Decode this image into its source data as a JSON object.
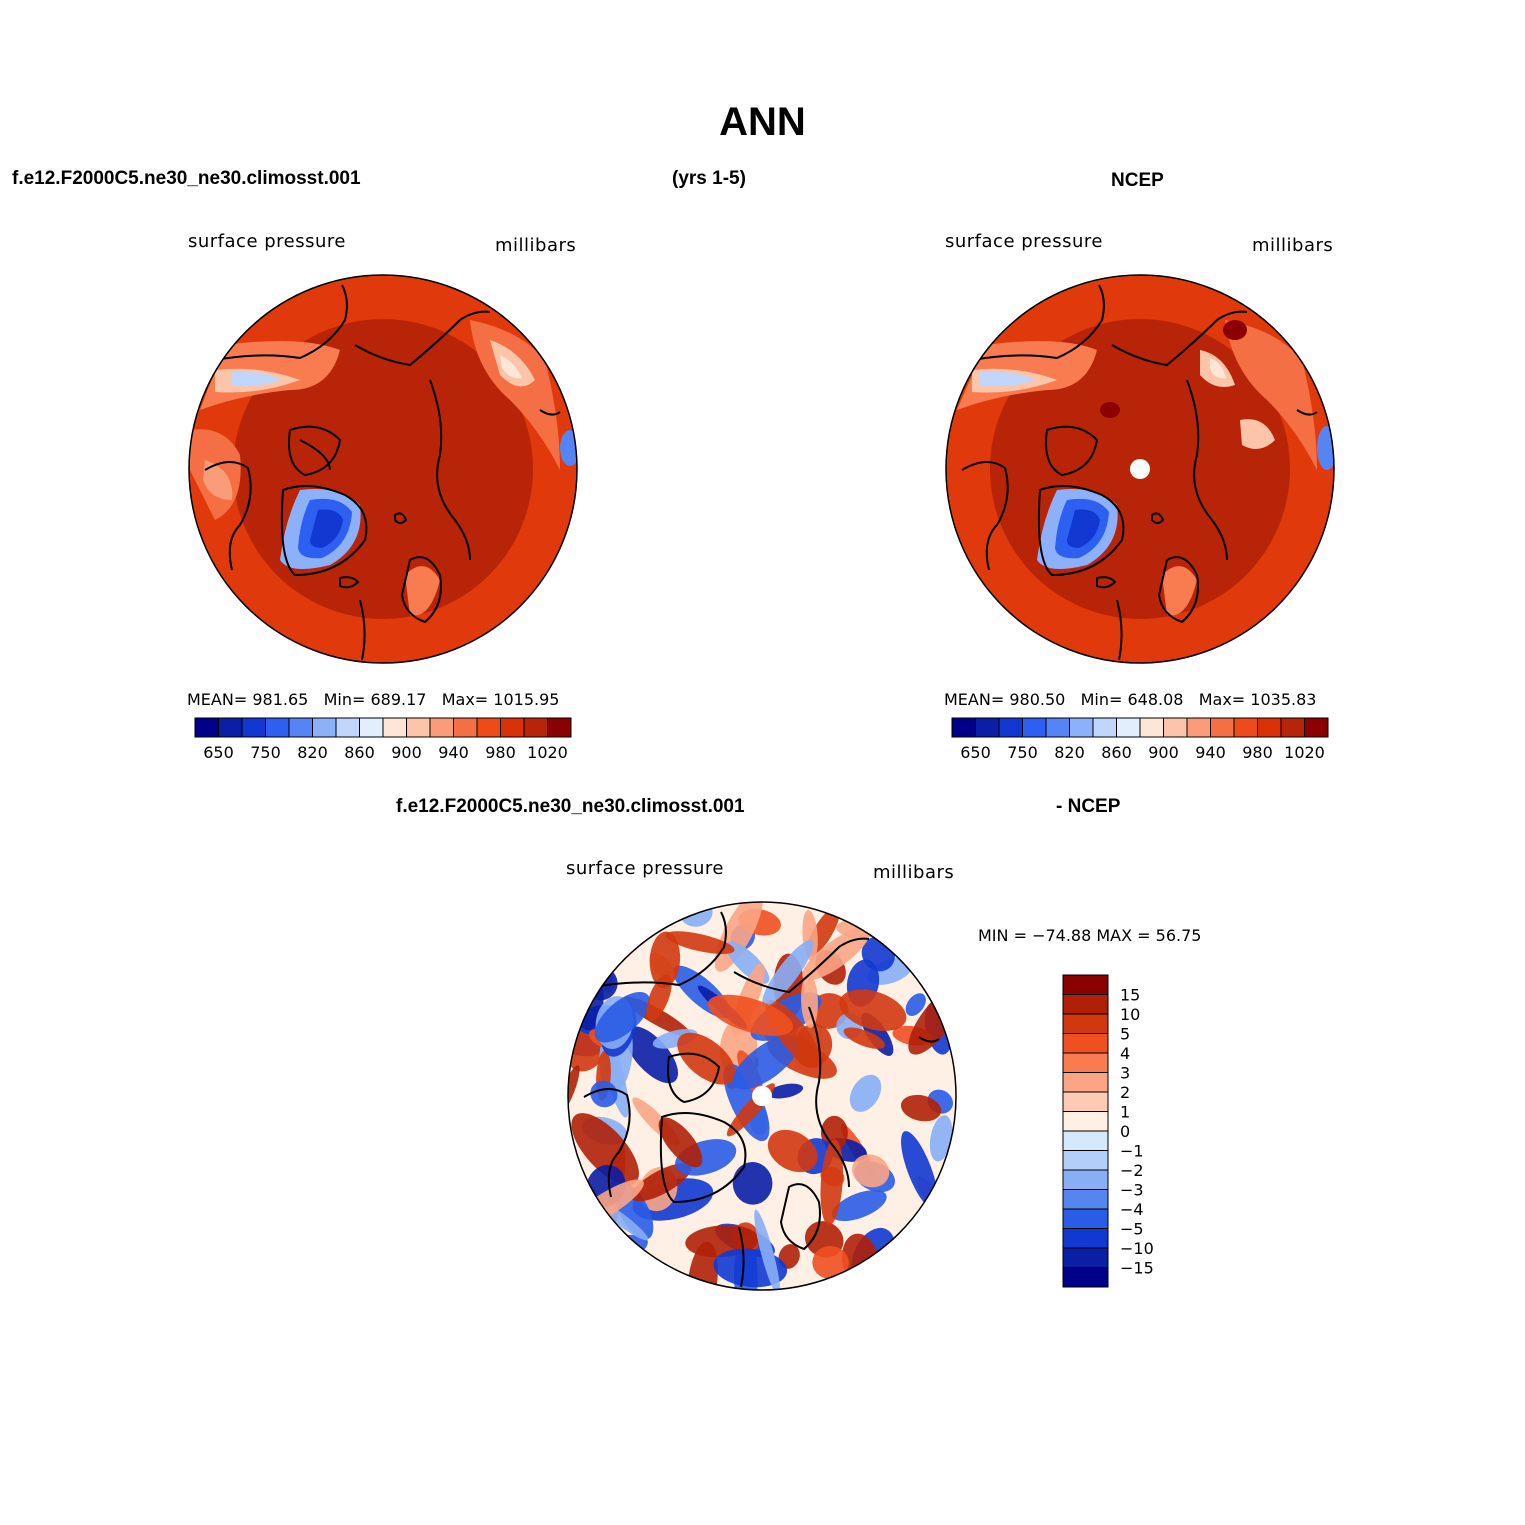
{
  "title": "ANN",
  "top_left_header": "f.e12.F2000C5.ne30_ne30.climosst.001",
  "top_center_header": "(yrs 1-5)",
  "top_right_header": "NCEP",
  "bottom_header_left": "f.e12.F2000C5.ne30_ne30.climosst.001",
  "bottom_header_right": "- NCEP",
  "panels": [
    {
      "variable": "surface pressure",
      "units": "millibars",
      "mean_label": "MEAN=",
      "mean": "981.65",
      "min_label": "Min=",
      "min": "689.17",
      "max_label": "Max=",
      "max": "1015.95"
    },
    {
      "variable": "surface pressure",
      "units": "millibars",
      "mean_label": "MEAN=",
      "mean": "980.50",
      "min_label": "Min=",
      "min": "648.08",
      "max_label": "Max=",
      "max": "1035.83"
    },
    {
      "variable": "surface pressure",
      "units": "millibars",
      "minmax_text": "MIN = −74.88  MAX =   56.75"
    }
  ],
  "abs_colorbar": {
    "colors": [
      "#00008b",
      "#0a1fa8",
      "#1238d2",
      "#2d5ff0",
      "#5585f5",
      "#8cb0fa",
      "#c0d6fc",
      "#e2eefc",
      "#fde6d6",
      "#fcc4a8",
      "#fa9c78",
      "#f56f44",
      "#ee4a1a",
      "#d93208",
      "#b82408",
      "#8b0000"
    ],
    "tick_labels": [
      "650",
      "750",
      "820",
      "860",
      "900",
      "940",
      "980",
      "1020"
    ]
  },
  "diff_colorbar": {
    "colors": [
      "#8b0000",
      "#b02008",
      "#d23810",
      "#f05020",
      "#f87c50",
      "#fba585",
      "#fdcbb4",
      "#fef0e4",
      "#d6e8fc",
      "#b3cff9",
      "#88aef4",
      "#5586ef",
      "#2a5ce6",
      "#1238d2",
      "#0a1ea6",
      "#00008b"
    ],
    "tick_labels": [
      "15",
      "10",
      "5",
      "4",
      "3",
      "2",
      "1",
      "0",
      "−1",
      "−2",
      "−3",
      "−4",
      "−5",
      "−10",
      "−15"
    ]
  }
}
